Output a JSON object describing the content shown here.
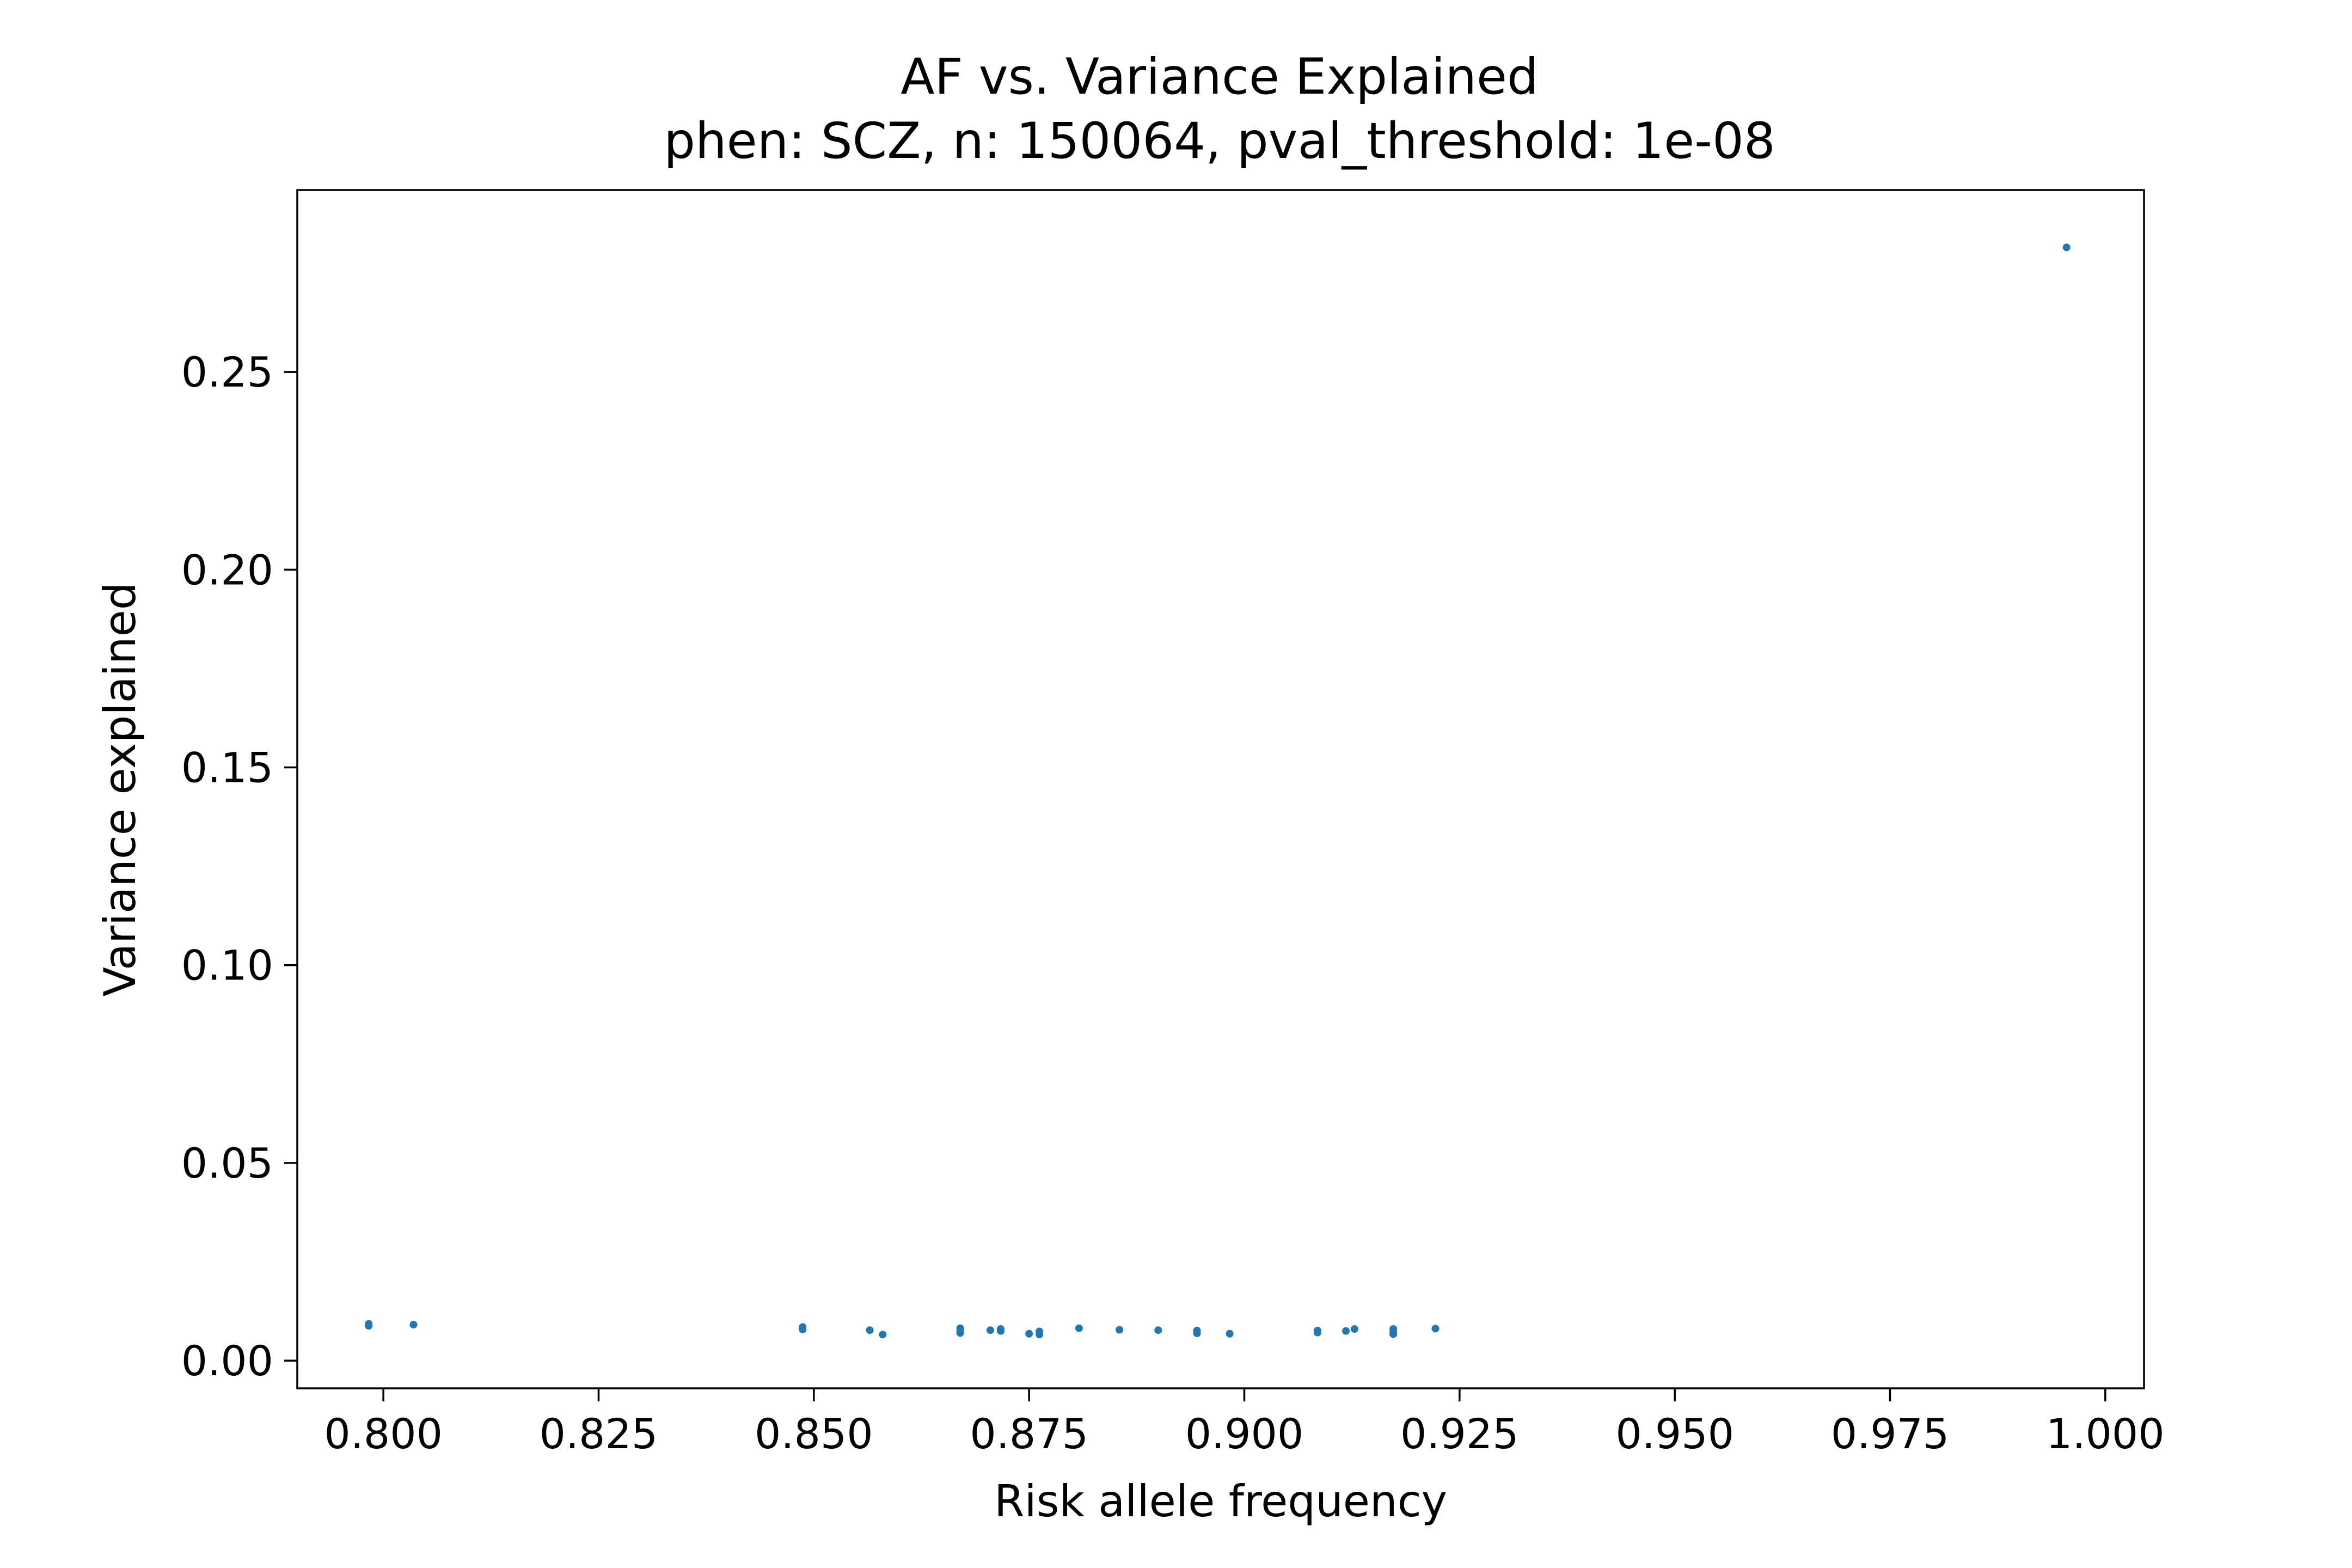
{
  "chart_data": {
    "type": "scatter",
    "title": "AF vs. Variance Explained",
    "subtitle": "phen: SCZ, n: 150064, pval_threshold: 1e-08",
    "xlabel": "Risk allele frequency",
    "ylabel": "Variance explained",
    "xlim": [
      0.79,
      1.0045
    ],
    "ylim": [
      -0.007,
      0.296
    ],
    "xticks": [
      {
        "value": 0.8,
        "label": "0.800"
      },
      {
        "value": 0.825,
        "label": "0.825"
      },
      {
        "value": 0.85,
        "label": "0.850"
      },
      {
        "value": 0.875,
        "label": "0.875"
      },
      {
        "value": 0.9,
        "label": "0.900"
      },
      {
        "value": 0.925,
        "label": "0.925"
      },
      {
        "value": 0.95,
        "label": "0.950"
      },
      {
        "value": 0.975,
        "label": "0.975"
      },
      {
        "value": 1.0,
        "label": "1.000"
      }
    ],
    "yticks": [
      {
        "value": 0.0,
        "label": "0.00"
      },
      {
        "value": 0.05,
        "label": "0.05"
      },
      {
        "value": 0.1,
        "label": "0.10"
      },
      {
        "value": 0.15,
        "label": "0.15"
      },
      {
        "value": 0.2,
        "label": "0.20"
      },
      {
        "value": 0.25,
        "label": "0.25"
      }
    ],
    "grid": false,
    "marker_color": "#1f77b4",
    "points": [
      {
        "x": 0.7983,
        "y": 0.0093
      },
      {
        "x": 0.7983,
        "y": 0.0088
      },
      {
        "x": 0.8035,
        "y": 0.0091
      },
      {
        "x": 0.8487,
        "y": 0.0085
      },
      {
        "x": 0.8487,
        "y": 0.0079
      },
      {
        "x": 0.8565,
        "y": 0.0077
      },
      {
        "x": 0.858,
        "y": 0.0066
      },
      {
        "x": 0.867,
        "y": 0.0082
      },
      {
        "x": 0.867,
        "y": 0.0075
      },
      {
        "x": 0.867,
        "y": 0.007
      },
      {
        "x": 0.8705,
        "y": 0.0077
      },
      {
        "x": 0.8717,
        "y": 0.008
      },
      {
        "x": 0.8717,
        "y": 0.0075
      },
      {
        "x": 0.875,
        "y": 0.0068
      },
      {
        "x": 0.8762,
        "y": 0.0074
      },
      {
        "x": 0.8762,
        "y": 0.0066
      },
      {
        "x": 0.8808,
        "y": 0.0082
      },
      {
        "x": 0.8855,
        "y": 0.0078
      },
      {
        "x": 0.89,
        "y": 0.0077
      },
      {
        "x": 0.8945,
        "y": 0.0076
      },
      {
        "x": 0.8945,
        "y": 0.0069
      },
      {
        "x": 0.8983,
        "y": 0.0068
      },
      {
        "x": 0.9085,
        "y": 0.0076
      },
      {
        "x": 0.9085,
        "y": 0.0071
      },
      {
        "x": 0.9118,
        "y": 0.0075
      },
      {
        "x": 0.9128,
        "y": 0.008
      },
      {
        "x": 0.9173,
        "y": 0.008
      },
      {
        "x": 0.9173,
        "y": 0.0073
      },
      {
        "x": 0.9173,
        "y": 0.0067
      },
      {
        "x": 0.9222,
        "y": 0.0081
      },
      {
        "x": 0.9955,
        "y": 0.2815
      }
    ]
  }
}
